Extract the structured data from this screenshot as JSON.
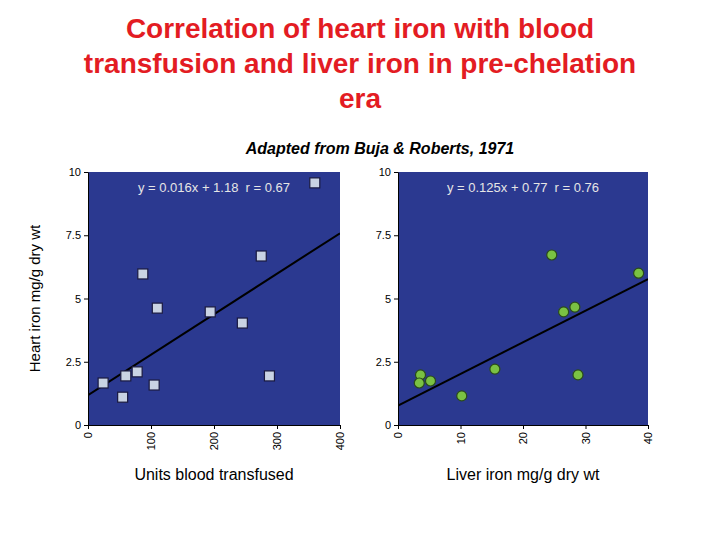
{
  "title": [
    "Correlation of heart iron with blood",
    "transfusion and liver iron in pre-chelation",
    "era"
  ],
  "subtitle": "Adapted from Buja & Roberts, 1971",
  "chart_data": [
    {
      "type": "scatter",
      "y_label": "Heart iron mg/g dry wt",
      "x_label": "Units blood transfused",
      "xlim": [
        0,
        400
      ],
      "xticks": [
        0,
        100,
        200,
        300,
        400
      ],
      "ylim": [
        0,
        10
      ],
      "yticks": [
        0,
        2.5,
        5,
        7.5,
        10
      ],
      "x": [
        24,
        55,
        60,
        78,
        87,
        105,
        110,
        194,
        245,
        275,
        288,
        360
      ],
      "values": [
        1.66,
        1.1,
        1.94,
        2.1,
        5.97,
        1.58,
        4.62,
        4.47,
        4.03,
        6.68,
        1.94,
        9.57
      ],
      "color": "#c9d3e3",
      "marker": "square",
      "annotation": "y = 0.016x + 1.18  r = 0.67",
      "fit": {
        "slope": 0.016,
        "intercept": 1.18
      }
    },
    {
      "type": "scatter",
      "x_label": "Liver iron mg/g dry wt",
      "xlim": [
        0,
        40
      ],
      "xticks": [
        0,
        10,
        20,
        30,
        40
      ],
      "ylim": [
        0,
        10
      ],
      "yticks": [
        0,
        2.5,
        5,
        7.5,
        10
      ],
      "x": [
        3.6,
        3.4,
        5.2,
        10.2,
        15.5,
        24.6,
        26.5,
        28.3,
        28.8,
        38.5
      ],
      "values": [
        1.98,
        1.66,
        1.74,
        1.15,
        2.21,
        6.72,
        4.47,
        4.66,
        1.98,
        6.0
      ],
      "color": "#7ac143",
      "marker": "circle",
      "annotation": "y = 0.125x + 0.77  r = 0.76",
      "fit": {
        "slope": 0.125,
        "intercept": 0.77
      }
    }
  ]
}
